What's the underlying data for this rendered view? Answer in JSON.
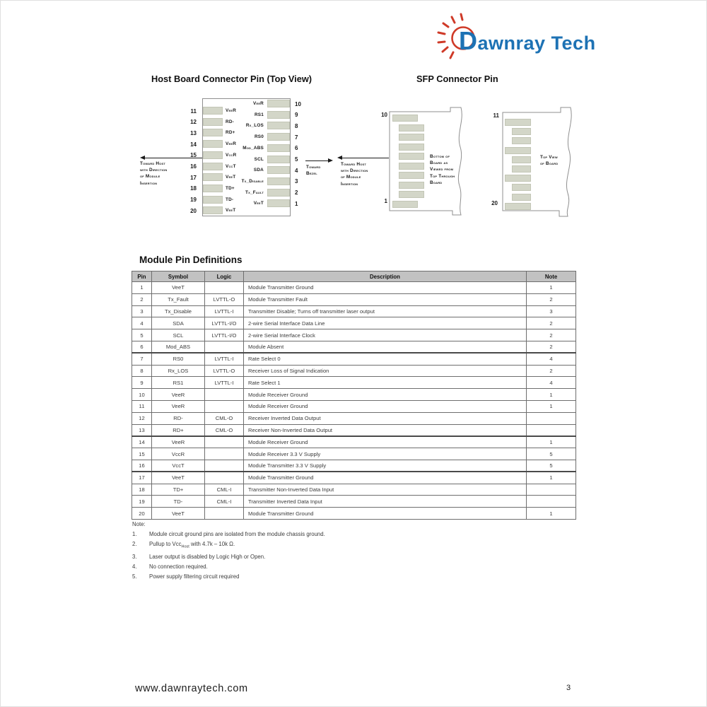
{
  "page": {
    "brand": "Dawnray Tech",
    "footer_url": "www.dawnraytech.com",
    "page_number": "3",
    "colors": {
      "brand_blue": "#1d72b4",
      "brand_red": "#cf3a28",
      "pad_fill": "#d3d6c8",
      "table_header_bg": "#c2c2c2"
    }
  },
  "host_diagram": {
    "title": "Host Board Connector Pin (Top View)",
    "left_pins": [
      {
        "num": "11",
        "label": "VeeR"
      },
      {
        "num": "12",
        "label": "RD-"
      },
      {
        "num": "13",
        "label": "RD+"
      },
      {
        "num": "14",
        "label": "VeeR"
      },
      {
        "num": "15",
        "label": "VccR"
      },
      {
        "num": "16",
        "label": "VccT"
      },
      {
        "num": "17",
        "label": "VeeT"
      },
      {
        "num": "18",
        "label": "TD+"
      },
      {
        "num": "19",
        "label": "TD-"
      },
      {
        "num": "20",
        "label": "VeeT"
      }
    ],
    "right_pins": [
      {
        "num": "10",
        "label": "VeeR"
      },
      {
        "num": "9",
        "label": "RS1"
      },
      {
        "num": "8",
        "label": "Rx_LOS"
      },
      {
        "num": "7",
        "label": "RS0"
      },
      {
        "num": "6",
        "label": "Mod_ABS"
      },
      {
        "num": "5",
        "label": "SCL"
      },
      {
        "num": "4",
        "label": "SDA"
      },
      {
        "num": "3",
        "label": "Tx_Disable"
      },
      {
        "num": "2",
        "label": "Tx_Fault"
      },
      {
        "num": "1",
        "label": "VeeT"
      }
    ],
    "left_annotation": [
      "Toward Host",
      "with Direction",
      "of Module",
      "Insertion"
    ],
    "bezel_annotation": [
      "Toward",
      "Bezel"
    ],
    "right_annotation": [
      "Toward Host",
      "with Direction",
      "of Module",
      "Insertion"
    ]
  },
  "sfp_diagram": {
    "title": "SFP Connector Pin",
    "left_board": {
      "top_pin": "10",
      "bottom_pin": "1",
      "caption_lines": [
        "Bottom of",
        "Board as",
        "Viewed from",
        "Top Through",
        "Board"
      ]
    },
    "right_board": {
      "top_pin": "11",
      "bottom_pin": "20",
      "caption_lines": [
        "Top View",
        "of Board"
      ]
    }
  },
  "pin_table": {
    "title": "Module Pin Definitions",
    "headers": [
      "Pin",
      "Symbol",
      "Logic",
      "Description",
      "Note"
    ],
    "rows": [
      [
        "1",
        "VeeT",
        "",
        "Module Transmitter Ground",
        "1"
      ],
      [
        "2",
        "Tx_Fault",
        "LVTTL-O",
        "Module Transmitter Fault",
        "2"
      ],
      [
        "3",
        "Tx_Disable",
        "LVTTL-I",
        "Transmitter Disable; Turns off transmitter laser output",
        "3"
      ],
      [
        "4",
        "SDA",
        "LVTTL-I/O",
        "2-wire Serial Interface Data Line",
        "2"
      ],
      [
        "5",
        "SCL",
        "LVTTL-I/O",
        "2-wire Serial Interface Clock",
        "2"
      ],
      [
        "6",
        "Mod_ABS",
        "",
        "Module Absent",
        "2"
      ],
      [
        "7",
        "RS0",
        "LVTTL-I",
        "Rate Select 0",
        "4"
      ],
      [
        "8",
        "Rx_LOS",
        "LVTTL-O",
        "Receiver Loss of Signal Indication",
        "2"
      ],
      [
        "9",
        "RS1",
        "LVTTL-I",
        "Rate Select 1",
        "4"
      ],
      [
        "10",
        "VeeR",
        "",
        "Module Receiver Ground",
        "1"
      ],
      [
        "11",
        "VeeR",
        "",
        "Module Receiver Ground",
        "1"
      ],
      [
        "12",
        "RD-",
        "CML-O",
        "Receiver Inverted Data Output",
        ""
      ],
      [
        "13",
        "RD+",
        "CML-O",
        "Receiver Non-Inverted Data Output",
        ""
      ],
      [
        "14",
        "VeeR",
        "",
        "Module Receiver Ground",
        "1"
      ],
      [
        "15",
        "VccR",
        "",
        "Module Receiver 3.3 V Supply",
        "5"
      ],
      [
        "16",
        "VccT",
        "",
        "Module Transmitter 3.3 V Supply",
        "5"
      ],
      [
        "17",
        "VeeT",
        "",
        "Module Transmitter Ground",
        "1"
      ],
      [
        "18",
        "TD+",
        "CML-I",
        "Transmitter Non-Inverted Data Input",
        ""
      ],
      [
        "19",
        "TD-",
        "CML-I",
        "Transmitter Inverted Data Input",
        ""
      ],
      [
        "20",
        "VeeT",
        "",
        "Module Transmitter Ground",
        "1"
      ]
    ],
    "thick_after_pins": [
      6,
      13,
      16
    ]
  },
  "notes": {
    "label": "Note:",
    "items": [
      {
        "num": "1.",
        "text": "Module circuit ground pins are isolated from the module chassis ground."
      },
      {
        "num": "2.",
        "prefix": "Pullup to Vcc",
        "sub": "Host",
        "suffix": " with 4.7k – 10k Ω."
      },
      {
        "num": "3.",
        "text": "Laser output is disabled by Logic High or Open."
      },
      {
        "num": "4.",
        "text": "No connection required."
      },
      {
        "num": "5.",
        "text": "Power supply filtering circuit required"
      }
    ]
  }
}
